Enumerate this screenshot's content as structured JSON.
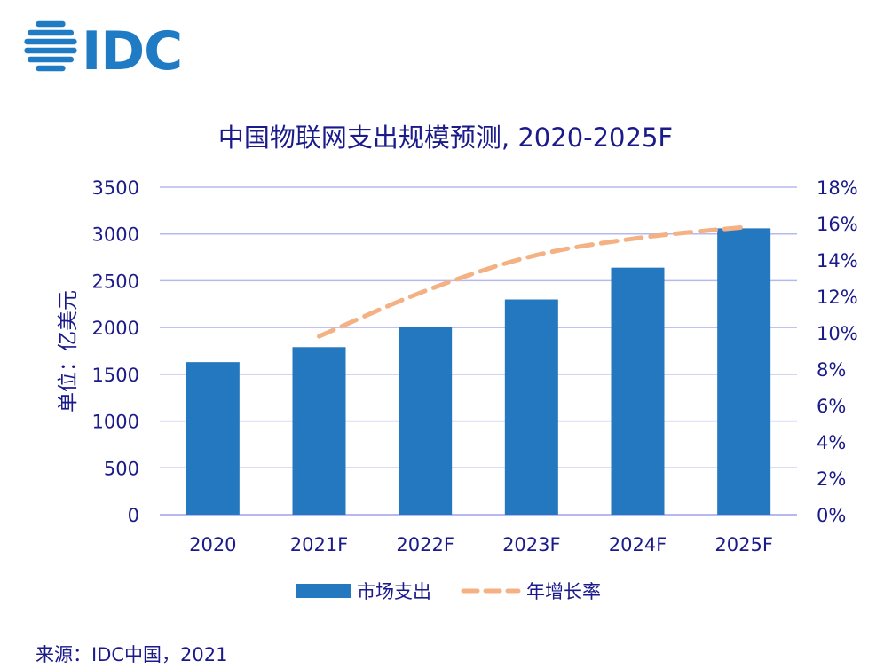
{
  "logo": {
    "text": "IDC"
  },
  "colors": {
    "bar": "#2378BF",
    "line": "#F4B183",
    "text": "#1A1A8A",
    "grid": "#B6B9F0",
    "logo": "#1E7BC4"
  },
  "chart_data": {
    "type": "bar",
    "title": "中国物联网支出规模预测, 2020-2025F",
    "ylabel": "单位：亿美元",
    "xlabel": "",
    "categories": [
      "2020",
      "2021F",
      "2022F",
      "2023F",
      "2024F",
      "2025F"
    ],
    "ylim": [
      0,
      3500
    ],
    "y_ticks": [
      "0",
      "500",
      "1000",
      "1500",
      "2000",
      "2500",
      "3000",
      "3500"
    ],
    "y2lim": [
      0,
      18
    ],
    "y2_ticks": [
      "0%",
      "2%",
      "4%",
      "6%",
      "8%",
      "10%",
      "12%",
      "14%",
      "16%",
      "18%"
    ],
    "grid": true,
    "legend_position": "bottom",
    "series": [
      {
        "name": "市场支出",
        "type": "bar",
        "axis": "left",
        "values": [
          1630,
          1790,
          2010,
          2300,
          2640,
          3060
        ]
      },
      {
        "name": "年增长率",
        "type": "line",
        "axis": "right",
        "style": "dashed",
        "values": [
          null,
          9.8,
          12.3,
          14.2,
          15.2,
          15.8
        ]
      }
    ]
  },
  "source": "来源：IDC中国，2021"
}
